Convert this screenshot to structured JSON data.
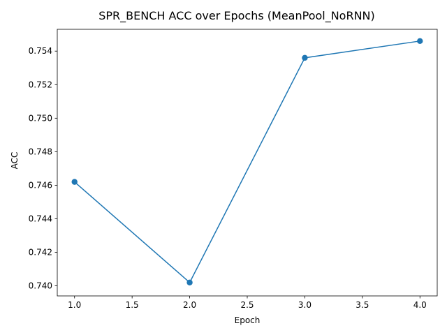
{
  "chart_data": {
    "type": "line",
    "title": "SPR_BENCH ACC over Epochs (MeanPool_NoRNN)",
    "xlabel": "Epoch",
    "ylabel": "ACC",
    "xlim": [
      0.85,
      4.15
    ],
    "ylim": [
      0.7394,
      0.7553
    ],
    "xticks": [
      "1.0",
      "1.5",
      "2.0",
      "2.5",
      "3.0",
      "3.5",
      "4.0"
    ],
    "yticks": [
      "0.740",
      "0.742",
      "0.744",
      "0.746",
      "0.748",
      "0.750",
      "0.752",
      "0.754"
    ],
    "grid": false,
    "series": [
      {
        "x": [
          1,
          2,
          3,
          4
        ],
        "values": [
          0.7462,
          0.7402,
          0.7536,
          0.7546
        ],
        "color": "#1f77b4",
        "marker": "circle"
      }
    ]
  }
}
